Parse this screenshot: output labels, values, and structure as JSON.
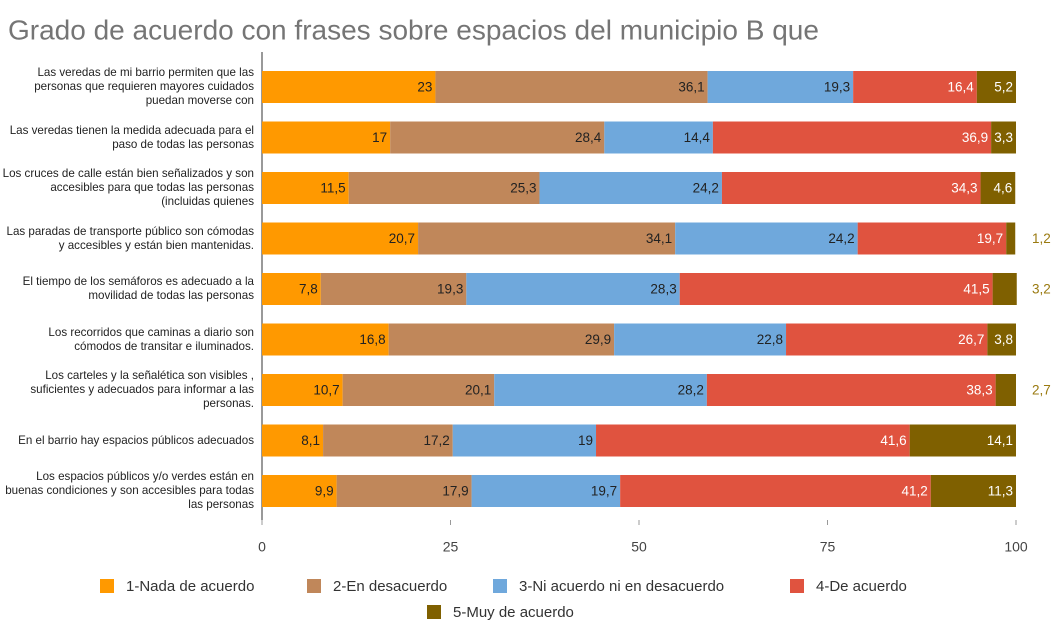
{
  "chart_data": {
    "type": "stacked-bar-horizontal",
    "title": "Grado de acuerdo con frases sobre espacios del municipio B que",
    "categories": [
      "Las veredas de mi barrio permiten que las personas que requieren mayores cuidados puedan moverse con",
      "Las veredas tienen la medida adecuada para el paso de todas las personas",
      "Los cruces de calle están bien señalizados y son accesibles para que todas las personas (incluidas quienes",
      "Las paradas de transporte público son cómodas y accesibles y están bien mantenidas.",
      "El tiempo de los semáforos es adecuado a la movilidad de todas las personas",
      "Los recorridos que caminas a diario son cómodos de transitar e iluminados.",
      "Los carteles y la señalética son visibles , suficientes y adecuados para informar a las personas.",
      "En el barrio hay espacios públicos adecuados",
      "Los espacios públicos y/o verdes están en buenas condiciones  y son accesibles para todas las personas"
    ],
    "series": [
      {
        "name": "1-Nada de acuerdo",
        "color": "#ff9900",
        "values": [
          23,
          17,
          11.5,
          20.7,
          7.8,
          16.8,
          10.7,
          8.1,
          9.9
        ],
        "value_labels": [
          "23",
          "17",
          "11,5",
          "20,7",
          "7,8",
          "16,8",
          "10,7",
          "8,1",
          "9,9"
        ]
      },
      {
        "name": "2-En desacuerdo",
        "color": "#c0875a",
        "values": [
          36.1,
          28.4,
          25.3,
          34.1,
          19.3,
          29.9,
          20.1,
          17.2,
          17.9
        ],
        "value_labels": [
          "36,1",
          "28,4",
          "25,3",
          "34,1",
          "19,3",
          "29,9",
          "20,1",
          "17,2",
          "17,9"
        ]
      },
      {
        "name": "3-Ni acuerdo ni en desacuerdo",
        "color": "#6fa8dc",
        "values": [
          19.3,
          14.4,
          24.2,
          24.2,
          28.3,
          22.8,
          28.2,
          19,
          19.7
        ],
        "value_labels": [
          "19,3",
          "14,4",
          "24,2",
          "24,2",
          "28,3",
          "22,8",
          "28,2",
          "19",
          "19,7"
        ]
      },
      {
        "name": "4-De acuerdo",
        "color": "#e0533f",
        "values": [
          16.4,
          36.9,
          34.3,
          19.7,
          41.5,
          26.7,
          38.3,
          41.6,
          41.2
        ],
        "value_labels": [
          "16,4",
          "36,9",
          "34,3",
          "19,7",
          "41,5",
          "26,7",
          "38,3",
          "41,6",
          "41,2"
        ]
      },
      {
        "name": "5-Muy de acuerdo",
        "color": "#7f6000",
        "values": [
          5.2,
          3.3,
          4.6,
          1.2,
          3.2,
          3.8,
          2.7,
          14.1,
          11.3
        ],
        "value_labels": [
          "5,2",
          "3,3",
          "4,6",
          "1,2",
          "3,2",
          "3,8",
          "2,7",
          "14,1",
          "11,3"
        ]
      }
    ],
    "xlim": [
      0,
      100
    ],
    "xticks": [
      0,
      25,
      50,
      75,
      100
    ]
  }
}
